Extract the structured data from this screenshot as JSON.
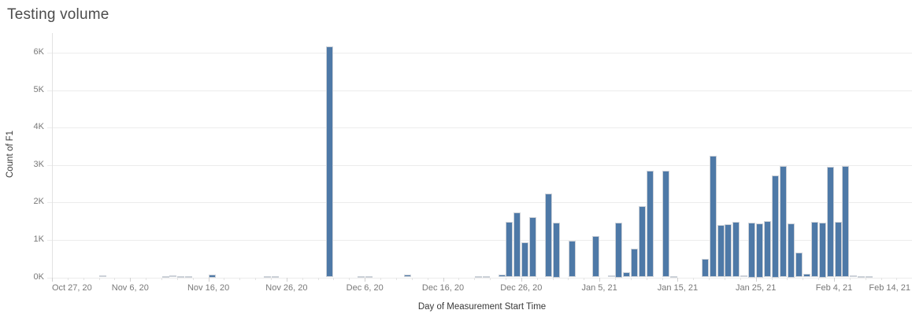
{
  "title": "Testing volume",
  "chart_data": {
    "type": "bar",
    "title": "Testing volume",
    "xlabel": "Day of Measurement Start Time",
    "ylabel": "Count of F1",
    "ylim": [
      0,
      6500
    ],
    "grid": "horizontal",
    "bar_color": "#4e79a7",
    "y_tick_labels": [
      "0K",
      "1K",
      "2K",
      "3K",
      "4K",
      "5K",
      "6K"
    ],
    "y_tick_values": [
      0,
      1000,
      2000,
      3000,
      4000,
      5000,
      6000
    ],
    "x_tick_labels": [
      "Oct 27, 20",
      "Nov 6, 20",
      "Nov 16, 20",
      "Nov 26, 20",
      "Dec 6, 20",
      "Dec 16, 20",
      "Dec 26, 20",
      "Jan 5, 21",
      "Jan 15, 21",
      "Jan 25, 21",
      "Feb 4, 21",
      "Feb 14, 21"
    ],
    "x_tick_day_offsets": [
      0,
      10,
      20,
      30,
      40,
      50,
      60,
      70,
      80,
      90,
      100,
      110
    ],
    "axis_start_date": "Oct 27, 20",
    "axis_end_date": "Feb 14, 21",
    "bars": [
      {
        "date": "Nov 2, 20",
        "day": 6,
        "value": 60
      },
      {
        "date": "Nov 10, 20",
        "day": 14,
        "value": 25
      },
      {
        "date": "Nov 11, 20",
        "day": 15,
        "value": 60
      },
      {
        "date": "Nov 12, 20",
        "day": 16,
        "value": 30
      },
      {
        "date": "Nov 13, 20",
        "day": 17,
        "value": 25
      },
      {
        "date": "Nov 16, 20",
        "day": 20,
        "value": 85
      },
      {
        "date": "Nov 23, 20",
        "day": 27,
        "value": 30
      },
      {
        "date": "Nov 24, 20",
        "day": 28,
        "value": 25
      },
      {
        "date": "Dec 1, 20",
        "day": 35,
        "value": 6160
      },
      {
        "date": "Dec 5, 20",
        "day": 39,
        "value": 25
      },
      {
        "date": "Dec 6, 20",
        "day": 40,
        "value": 20
      },
      {
        "date": "Dec 11, 20",
        "day": 45,
        "value": 70
      },
      {
        "date": "Dec 20, 20",
        "day": 54,
        "value": 20
      },
      {
        "date": "Dec 21, 20",
        "day": 55,
        "value": 25
      },
      {
        "date": "Dec 23, 20",
        "day": 57,
        "value": 80
      },
      {
        "date": "Dec 24, 20",
        "day": 58,
        "value": 1480
      },
      {
        "date": "Dec 25, 20",
        "day": 59,
        "value": 1740
      },
      {
        "date": "Dec 26, 20",
        "day": 60,
        "value": 930
      },
      {
        "date": "Dec 27, 20",
        "day": 61,
        "value": 1600
      },
      {
        "date": "Dec 29, 20",
        "day": 63,
        "value": 2240
      },
      {
        "date": "Dec 30, 20",
        "day": 64,
        "value": 1460
      },
      {
        "date": "Jan 1, 21",
        "day": 66,
        "value": 980
      },
      {
        "date": "Jan 4, 21",
        "day": 69,
        "value": 1100
      },
      {
        "date": "Jan 6, 21",
        "day": 71,
        "value": 50
      },
      {
        "date": "Jan 7, 21",
        "day": 72,
        "value": 1470
      },
      {
        "date": "Jan 8, 21",
        "day": 73,
        "value": 140
      },
      {
        "date": "Jan 9, 21",
        "day": 74,
        "value": 760
      },
      {
        "date": "Jan 10, 21",
        "day": 75,
        "value": 1900
      },
      {
        "date": "Jan 11, 21",
        "day": 76,
        "value": 2850
      },
      {
        "date": "Jan 13, 21",
        "day": 78,
        "value": 2840
      },
      {
        "date": "Jan 14, 21",
        "day": 79,
        "value": 30
      },
      {
        "date": "Jan 18, 21",
        "day": 83,
        "value": 490
      },
      {
        "date": "Jan 19, 21",
        "day": 84,
        "value": 3250
      },
      {
        "date": "Jan 20, 21",
        "day": 85,
        "value": 1400
      },
      {
        "date": "Jan 21, 21",
        "day": 86,
        "value": 1420
      },
      {
        "date": "Jan 22, 21",
        "day": 87,
        "value": 1490
      },
      {
        "date": "Jan 23, 21",
        "day": 88,
        "value": 60
      },
      {
        "date": "Jan 24, 21",
        "day": 89,
        "value": 1470
      },
      {
        "date": "Jan 25, 21",
        "day": 90,
        "value": 1450
      },
      {
        "date": "Jan 26, 21",
        "day": 91,
        "value": 1500
      },
      {
        "date": "Jan 27, 21",
        "day": 92,
        "value": 2720
      },
      {
        "date": "Jan 28, 21",
        "day": 93,
        "value": 2970
      },
      {
        "date": "Jan 29, 21",
        "day": 94,
        "value": 1440
      },
      {
        "date": "Jan 30, 21",
        "day": 95,
        "value": 670
      },
      {
        "date": "Jan 31, 21",
        "day": 96,
        "value": 90
      },
      {
        "date": "Feb 1, 21",
        "day": 97,
        "value": 1490
      },
      {
        "date": "Feb 2, 21",
        "day": 98,
        "value": 1470
      },
      {
        "date": "Feb 3, 21",
        "day": 99,
        "value": 2960
      },
      {
        "date": "Feb 4, 21",
        "day": 100,
        "value": 1480
      },
      {
        "date": "Feb 5, 21",
        "day": 101,
        "value": 2970
      },
      {
        "date": "Feb 6, 21",
        "day": 102,
        "value": 60
      },
      {
        "date": "Feb 7, 21",
        "day": 103,
        "value": 25
      },
      {
        "date": "Feb 8, 21",
        "day": 104,
        "value": 20
      }
    ]
  }
}
